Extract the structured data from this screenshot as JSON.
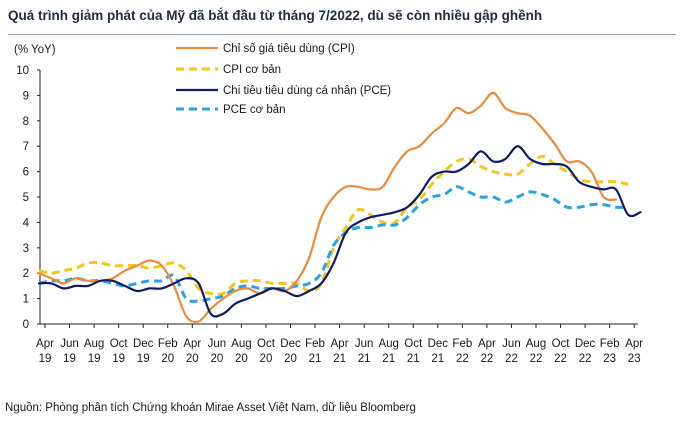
{
  "title": "Quá trình giảm phát của Mỹ đã bắt đầu từ tháng 7/2022, dù sẽ còn nhiều gập ghềnh",
  "source": "Nguồn: Phòng phân tích Chứng khoán Mirae Asset Việt Nam, dữ liệu Bloomberg",
  "chart_data": {
    "type": "line",
    "ylabel": "(% YoY)",
    "ylim": [
      0,
      10
    ],
    "yticks": [
      "0",
      "1",
      "2",
      "3",
      "4",
      "5",
      "6",
      "7",
      "8",
      "9",
      "10"
    ],
    "xlabels": [
      {
        "m": "Apr",
        "y": "19"
      },
      {
        "m": "Jun",
        "y": "19"
      },
      {
        "m": "Aug",
        "y": "19"
      },
      {
        "m": "Oct",
        "y": "19"
      },
      {
        "m": "Dec",
        "y": "19"
      },
      {
        "m": "Feb",
        "y": "20"
      },
      {
        "m": "Apr",
        "y": "20"
      },
      {
        "m": "Jun",
        "y": "20"
      },
      {
        "m": "Aug",
        "y": "20"
      },
      {
        "m": "Oct",
        "y": "20"
      },
      {
        "m": "Dec",
        "y": "20"
      },
      {
        "m": "Feb",
        "y": "21"
      },
      {
        "m": "Apr",
        "y": "21"
      },
      {
        "m": "Jun",
        "y": "21"
      },
      {
        "m": "Aug",
        "y": "21"
      },
      {
        "m": "Oct",
        "y": "21"
      },
      {
        "m": "Dec",
        "y": "21"
      },
      {
        "m": "Feb",
        "y": "22"
      },
      {
        "m": "Apr",
        "y": "22"
      },
      {
        "m": "Jun",
        "y": "22"
      },
      {
        "m": "Aug",
        "y": "22"
      },
      {
        "m": "Oct",
        "y": "22"
      },
      {
        "m": "Dec",
        "y": "22"
      },
      {
        "m": "Feb",
        "y": "23"
      },
      {
        "m": "Apr",
        "y": "23"
      }
    ],
    "grid": false,
    "legend_position": "top",
    "series": [
      {
        "name": "Chỉ số giá tiêu dùng (CPI)",
        "color": "#ee8a3a",
        "dash": "solid",
        "values": [
          2.0,
          1.8,
          1.6,
          1.8,
          1.7,
          1.7,
          1.8,
          2.1,
          2.3,
          2.5,
          2.3,
          1.5,
          0.3,
          0.1,
          0.6,
          1.0,
          1.3,
          1.4,
          1.2,
          1.4,
          1.3,
          1.7,
          2.6,
          4.2,
          5.0,
          5.4,
          5.4,
          5.3,
          5.4,
          6.2,
          6.8,
          7.0,
          7.5,
          7.9,
          8.5,
          8.3,
          8.6,
          9.1,
          8.5,
          8.3,
          8.2,
          7.7,
          7.1,
          6.4,
          6.4,
          6.0,
          5.0,
          4.9
        ]
      },
      {
        "name": "CPI cơ bản",
        "color": "#f5c518",
        "dash": "dashed",
        "values": [
          2.1,
          2.0,
          2.1,
          2.2,
          2.4,
          2.4,
          2.3,
          2.3,
          2.3,
          2.2,
          2.3,
          2.4,
          2.1,
          1.4,
          1.2,
          1.2,
          1.6,
          1.7,
          1.7,
          1.6,
          1.6,
          1.6,
          1.3,
          1.6,
          3.0,
          3.8,
          4.5,
          4.3,
          4.0,
          4.0,
          4.6,
          4.9,
          5.5,
          6.0,
          6.4,
          6.5,
          6.2,
          6.0,
          5.9,
          5.9,
          6.3,
          6.6,
          6.3,
          6.0,
          5.7,
          5.6,
          5.6,
          5.6,
          5.5
        ]
      },
      {
        "name": "Chi tiêu tiêu dùng cá nhân (PCE)",
        "color": "#0e1d63",
        "dash": "solid",
        "values": [
          1.6,
          1.6,
          1.4,
          1.5,
          1.5,
          1.7,
          1.7,
          1.5,
          1.3,
          1.4,
          1.4,
          1.6,
          1.8,
          1.6,
          0.4,
          0.4,
          0.8,
          1.0,
          1.2,
          1.4,
          1.3,
          1.1,
          1.3,
          1.6,
          2.4,
          3.6,
          4.0,
          4.2,
          4.3,
          4.4,
          4.6,
          5.1,
          5.8,
          6.0,
          6.0,
          6.3,
          6.8,
          6.4,
          6.5,
          7.0,
          6.5,
          6.3,
          6.3,
          6.2,
          5.6,
          5.4,
          5.3,
          5.3,
          4.3,
          4.4
        ]
      },
      {
        "name": "PCE cơ bản",
        "color": "#29a3e3",
        "dash": "dashed",
        "values": [
          1.6,
          1.7,
          1.7,
          1.8,
          1.7,
          1.7,
          1.6,
          1.5,
          1.6,
          1.7,
          1.7,
          1.9,
          1.0,
          0.9,
          1.0,
          1.1,
          1.4,
          1.5,
          1.4,
          1.4,
          1.4,
          1.5,
          1.6,
          2.0,
          3.1,
          3.6,
          3.8,
          3.8,
          3.9,
          3.9,
          4.2,
          4.7,
          5.0,
          5.1,
          5.4,
          5.2,
          5.0,
          5.0,
          4.8,
          5.0,
          5.2,
          5.1,
          4.9,
          4.6,
          4.6,
          4.7,
          4.7,
          4.6,
          4.6
        ]
      }
    ]
  }
}
